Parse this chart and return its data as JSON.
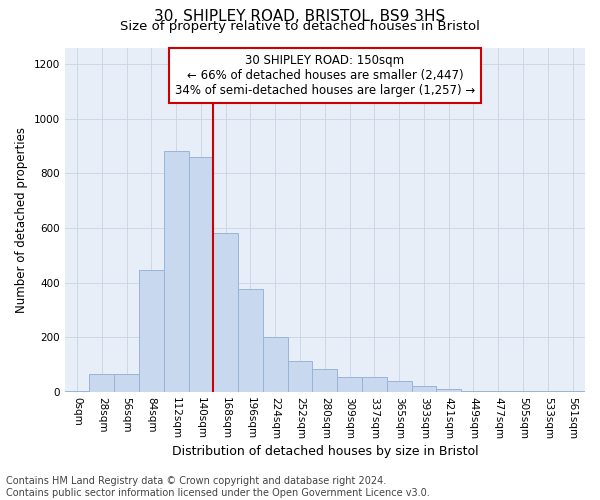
{
  "title1": "30, SHIPLEY ROAD, BRISTOL, BS9 3HS",
  "title2": "Size of property relative to detached houses in Bristol",
  "xlabel": "Distribution of detached houses by size in Bristol",
  "ylabel": "Number of detached properties",
  "bar_labels": [
    "0sqm",
    "28sqm",
    "56sqm",
    "84sqm",
    "112sqm",
    "140sqm",
    "168sqm",
    "196sqm",
    "224sqm",
    "252sqm",
    "280sqm",
    "309sqm",
    "337sqm",
    "365sqm",
    "393sqm",
    "421sqm",
    "449sqm",
    "477sqm",
    "505sqm",
    "533sqm",
    "561sqm"
  ],
  "bar_values": [
    5,
    65,
    65,
    445,
    880,
    860,
    580,
    375,
    200,
    115,
    85,
    55,
    55,
    40,
    20,
    12,
    5,
    4,
    3,
    3,
    3
  ],
  "bar_color": "#c8d8ee",
  "bar_edgecolor": "#9ab4d8",
  "grid_color": "#c8d4e4",
  "plot_bg_color": "#e8eef8",
  "fig_bg_color": "#ffffff",
  "annotation_text": "30 SHIPLEY ROAD: 150sqm\n← 66% of detached houses are smaller (2,447)\n34% of semi-detached houses are larger (1,257) →",
  "vline_x": 5.5,
  "vline_color": "#cc0000",
  "annotation_box_facecolor": "#ffffff",
  "annotation_box_edgecolor": "#cc0000",
  "ylim": [
    0,
    1260
  ],
  "yticks": [
    0,
    200,
    400,
    600,
    800,
    1000,
    1200
  ],
  "footer_line1": "Contains HM Land Registry data © Crown copyright and database right 2024.",
  "footer_line2": "Contains public sector information licensed under the Open Government Licence v3.0.",
  "title1_fontsize": 11,
  "title2_fontsize": 9.5,
  "xlabel_fontsize": 9,
  "ylabel_fontsize": 8.5,
  "tick_fontsize": 7.5,
  "footer_fontsize": 7,
  "annotation_fontsize": 8.5
}
